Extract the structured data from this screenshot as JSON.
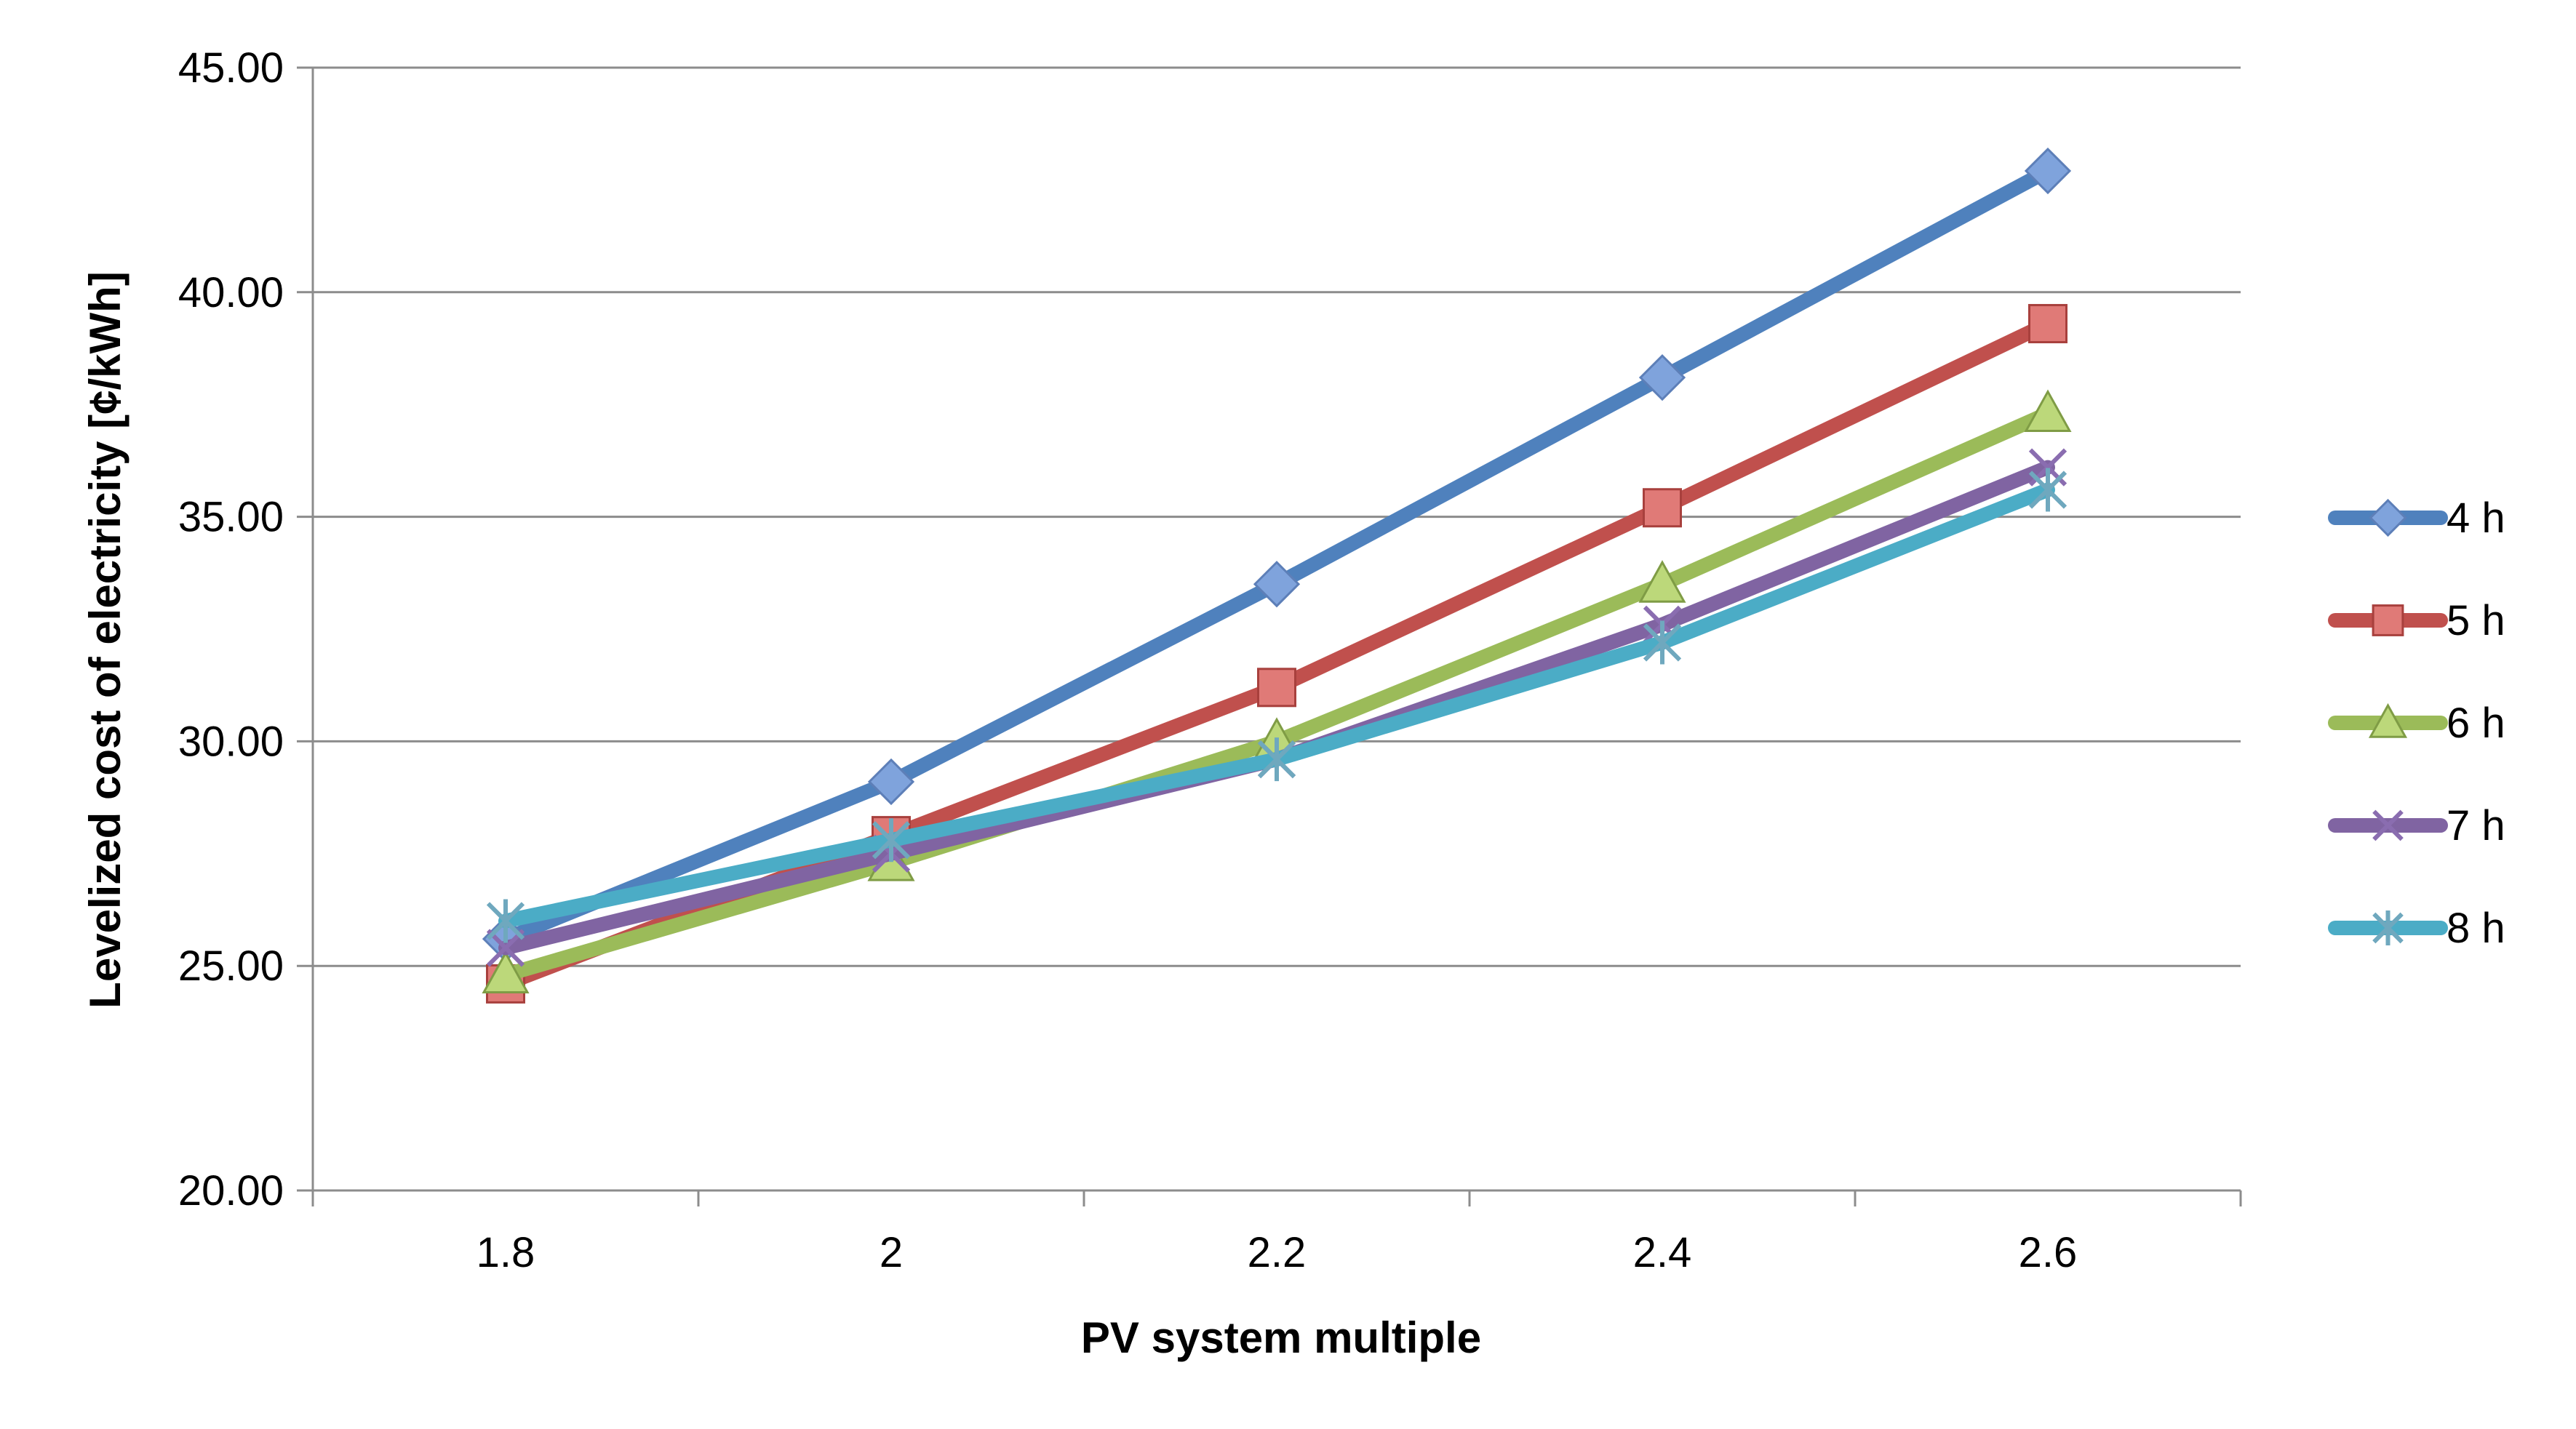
{
  "chart_data": {
    "type": "line",
    "title": "",
    "xlabel": "PV system multiple",
    "ylabel": "Levelized cost of electricity [¢/kWh]",
    "categories": [
      "1.8",
      "2",
      "2.2",
      "2.4",
      "2.6"
    ],
    "ylim": [
      20,
      45
    ],
    "yticks": [
      "20.00",
      "25.00",
      "30.00",
      "35.00",
      "40.00",
      "45.00"
    ],
    "grid": "horizontal",
    "legend_position": "right",
    "series": [
      {
        "name": "4 h",
        "values": [
          25.6,
          29.1,
          33.5,
          38.1,
          42.7
        ],
        "color": "#4f81bd",
        "marker": "diamond",
        "marker_color": "#7fa3dc"
      },
      {
        "name": "5 h",
        "values": [
          24.6,
          27.9,
          31.2,
          35.2,
          39.3
        ],
        "color": "#c0504d",
        "marker": "square",
        "marker_color": "#e07a77"
      },
      {
        "name": "6 h",
        "values": [
          24.8,
          27.3,
          30.0,
          33.5,
          37.3
        ],
        "color": "#9bbb59",
        "marker": "triangle",
        "marker_color": "#bcd87a"
      },
      {
        "name": "7 h",
        "values": [
          25.4,
          27.5,
          29.6,
          32.6,
          36.1
        ],
        "color": "#8064a2",
        "marker": "x",
        "marker_color": "#8a6db0"
      },
      {
        "name": "8 h",
        "values": [
          26.0,
          27.8,
          29.6,
          32.2,
          35.6
        ],
        "color": "#4bacc6",
        "marker": "asterisk",
        "marker_color": "#6fa8be"
      }
    ]
  }
}
